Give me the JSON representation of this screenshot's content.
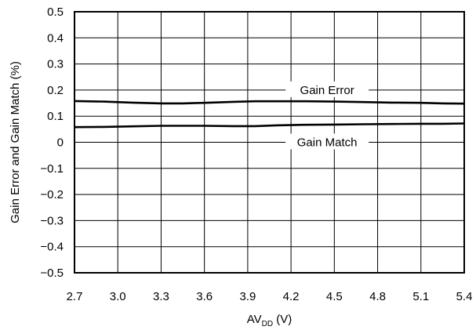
{
  "chart_data": {
    "type": "line",
    "title": "",
    "xlabel": "AV",
    "xlabel_sub": "DD",
    "xlabel_unit": " (V)",
    "ylabel": "Gain Error and Gain Match (%)",
    "xlim": [
      2.7,
      5.4
    ],
    "ylim": [
      -0.5,
      0.5
    ],
    "x_ticks": [
      "2.7",
      "3.0",
      "3.3",
      "3.6",
      "3.9",
      "4.2",
      "4.5",
      "4.8",
      "5.1",
      "5.4"
    ],
    "y_ticks": [
      "0.5",
      "0.4",
      "0.3",
      "0.2",
      "0.1",
      "0",
      "−0.1",
      "−0.2",
      "−0.3",
      "−0.4",
      "−0.5"
    ],
    "grid": true,
    "legend": "none",
    "series": [
      {
        "name": "Gain Error",
        "label_x": 4.45,
        "label_y": 0.2,
        "x": [
          2.7,
          2.9,
          3.1,
          3.3,
          3.45,
          3.6,
          3.8,
          3.95,
          4.1,
          4.3,
          4.5,
          4.7,
          4.9,
          5.1,
          5.25,
          5.4
        ],
        "y": [
          0.158,
          0.156,
          0.152,
          0.149,
          0.149,
          0.151,
          0.155,
          0.157,
          0.157,
          0.157,
          0.156,
          0.154,
          0.152,
          0.151,
          0.149,
          0.148
        ]
      },
      {
        "name": "Gain Match",
        "label_x": 4.45,
        "label_y": 0.0,
        "x": [
          2.7,
          2.9,
          3.1,
          3.3,
          3.45,
          3.6,
          3.8,
          3.95,
          4.1,
          4.3,
          4.5,
          4.7,
          4.9,
          5.1,
          5.25,
          5.4
        ],
        "y": [
          0.058,
          0.059,
          0.061,
          0.063,
          0.063,
          0.063,
          0.062,
          0.062,
          0.065,
          0.067,
          0.068,
          0.069,
          0.07,
          0.071,
          0.071,
          0.072
        ]
      }
    ]
  }
}
